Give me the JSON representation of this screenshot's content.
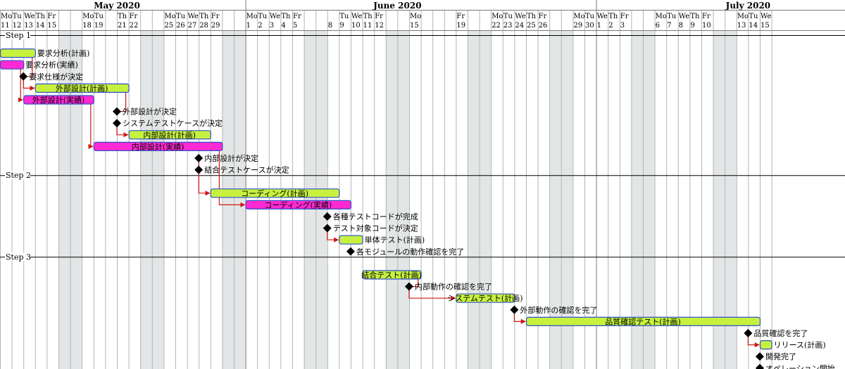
{
  "months": [
    {
      "label": "May 2020",
      "center_day": 10
    },
    {
      "label": "June 2020",
      "center_day": 34
    },
    {
      "label": "July 2020",
      "center_day": 64
    }
  ],
  "day_header": [
    {
      "wd": "Mo",
      "d": "11",
      "i": 0
    },
    {
      "wd": "Tu",
      "d": "12",
      "i": 1
    },
    {
      "wd": "We",
      "d": "13",
      "i": 2
    },
    {
      "wd": "Th",
      "d": "14",
      "i": 3
    },
    {
      "wd": "Fr",
      "d": "15",
      "i": 4
    },
    {
      "wd": "Mo",
      "d": "18",
      "i": 7
    },
    {
      "wd": "Tu",
      "d": "19",
      "i": 8
    },
    {
      "wd": "Th",
      "d": "21",
      "i": 10
    },
    {
      "wd": "Fr",
      "d": "22",
      "i": 11
    },
    {
      "wd": "Mo",
      "d": "25",
      "i": 14
    },
    {
      "wd": "Tu",
      "d": "26",
      "i": 15
    },
    {
      "wd": "We",
      "d": "27",
      "i": 16
    },
    {
      "wd": "Th",
      "d": "28",
      "i": 17
    },
    {
      "wd": "Fr",
      "d": "29",
      "i": 18
    },
    {
      "wd": "Mo",
      "d": "1",
      "i": 21
    },
    {
      "wd": "Tu",
      "d": "2",
      "i": 22
    },
    {
      "wd": "We",
      "d": "3",
      "i": 23
    },
    {
      "wd": "Th",
      "d": "4",
      "i": 24
    },
    {
      "wd": "Fr",
      "d": "5",
      "i": 25
    },
    {
      "wd": "",
      "d": "8",
      "i": 28
    },
    {
      "wd": "Tu",
      "d": "9",
      "i": 29
    },
    {
      "wd": "We",
      "d": "10",
      "i": 30
    },
    {
      "wd": "Th",
      "d": "11",
      "i": 31
    },
    {
      "wd": "Fr",
      "d": "12",
      "i": 32
    },
    {
      "wd": "Mo",
      "d": "15",
      "i": 35
    },
    {
      "wd": "Fr",
      "d": "19",
      "i": 39
    },
    {
      "wd": "Mo",
      "d": "22",
      "i": 42
    },
    {
      "wd": "Tu",
      "d": "23",
      "i": 43
    },
    {
      "wd": "We",
      "d": "24",
      "i": 44
    },
    {
      "wd": "Th",
      "d": "25",
      "i": 45
    },
    {
      "wd": "Fr",
      "d": "26",
      "i": 46
    },
    {
      "wd": "Mo",
      "d": "29",
      "i": 49
    },
    {
      "wd": "Tu",
      "d": "30",
      "i": 50
    },
    {
      "wd": "We",
      "d": "1",
      "i": 51
    },
    {
      "wd": "Th",
      "d": "2",
      "i": 52
    },
    {
      "wd": "Fr",
      "d": "3",
      "i": 53
    },
    {
      "wd": "Mo",
      "d": "6",
      "i": 56
    },
    {
      "wd": "Tu",
      "d": "7",
      "i": 57
    },
    {
      "wd": "We",
      "d": "8",
      "i": 58
    },
    {
      "wd": "Th",
      "d": "9",
      "i": 59
    },
    {
      "wd": "Fr",
      "d": "10",
      "i": 60
    },
    {
      "wd": "Mo",
      "d": "13",
      "i": 63
    },
    {
      "wd": "Tu",
      "d": "14",
      "i": 64
    },
    {
      "wd": "We",
      "d": "15",
      "i": 65
    }
  ],
  "steps": [
    {
      "label": "Step 1",
      "row": 0
    },
    {
      "label": "Step 2",
      "row": 12
    },
    {
      "label": "Step 3",
      "row": 19
    }
  ],
  "tasks": [
    {
      "id": "t1",
      "label": "要求分析(計画)",
      "type": "bar",
      "kind": "plan",
      "start": 0,
      "end": 3,
      "row": 1
    },
    {
      "id": "t2",
      "label": "要求分析(実績)",
      "type": "bar",
      "kind": "actual",
      "start": 0,
      "end": 2,
      "row": 2
    },
    {
      "id": "m1",
      "label": "要求仕様が決定",
      "type": "milestone",
      "at": 2,
      "row": 3
    },
    {
      "id": "t3",
      "label": "外部設計(計画)",
      "type": "bar",
      "kind": "plan",
      "start": 3,
      "end": 11,
      "row": 4
    },
    {
      "id": "t4",
      "label": "外部設計(実績)",
      "type": "bar",
      "kind": "actual",
      "start": 2,
      "end": 8,
      "row": 5
    },
    {
      "id": "m2",
      "label": "外部設計が決定",
      "type": "milestone",
      "at": 10,
      "row": 6
    },
    {
      "id": "m3",
      "label": "システムテストケースが決定",
      "type": "milestone",
      "at": 10,
      "row": 7
    },
    {
      "id": "t5",
      "label": "内部設計(計画)",
      "type": "bar",
      "kind": "plan",
      "start": 11,
      "end": 18,
      "row": 8
    },
    {
      "id": "t6",
      "label": "内部設計(実績)",
      "type": "bar",
      "kind": "actual",
      "start": 8,
      "end": 19,
      "row": 9
    },
    {
      "id": "m4",
      "label": "内部設計が決定",
      "type": "milestone",
      "at": 17,
      "row": 10
    },
    {
      "id": "m5",
      "label": "結合テストケースが決定",
      "type": "milestone",
      "at": 17,
      "row": 11
    },
    {
      "id": "t7",
      "label": "コーディング(計画)",
      "type": "bar",
      "kind": "plan",
      "start": 18,
      "end": 29,
      "row": 13
    },
    {
      "id": "t8",
      "label": "コーディング(実績)",
      "type": "bar",
      "kind": "actual",
      "start": 21,
      "end": 30,
      "row": 14
    },
    {
      "id": "m6",
      "label": "各種テストコードが完成",
      "type": "milestone",
      "at": 28,
      "row": 15
    },
    {
      "id": "m7",
      "label": "テスト対象コードが決定",
      "type": "milestone",
      "at": 28,
      "row": 16
    },
    {
      "id": "t9",
      "label": "単体テスト(計画)",
      "type": "bar",
      "kind": "plan",
      "start": 29,
      "end": 31,
      "row": 17
    },
    {
      "id": "m8",
      "label": "各モジュールの動作確認を完了",
      "type": "milestone",
      "at": 30,
      "row": 18
    },
    {
      "id": "t10",
      "label": "結合テスト(計画)",
      "type": "bar",
      "kind": "plan",
      "start": 31,
      "end": 36,
      "row": 20
    },
    {
      "id": "m9",
      "label": "内部動作の確認を完了",
      "type": "milestone",
      "at": 35,
      "row": 21
    },
    {
      "id": "t11",
      "label": "システムテスト(計画)",
      "type": "bar",
      "kind": "plan",
      "start": 39,
      "end": 44,
      "row": 22
    },
    {
      "id": "m10",
      "label": "外部動作の確認を完了",
      "type": "milestone",
      "at": 44,
      "row": 23
    },
    {
      "id": "t12",
      "label": "品質確認テスト(計画)",
      "type": "bar",
      "kind": "plan",
      "start": 45,
      "end": 65,
      "row": 24
    },
    {
      "id": "m11",
      "label": "品質確認を完了",
      "type": "milestone",
      "at": 64,
      "row": 25
    },
    {
      "id": "t13",
      "label": "リリース(計画)",
      "type": "bar",
      "kind": "plan",
      "start": 65,
      "end": 66,
      "row": 26
    },
    {
      "id": "m12",
      "label": "開発完了",
      "type": "milestone",
      "at": 65,
      "row": 27
    },
    {
      "id": "m13",
      "label": "オペレーション開始",
      "type": "milestone",
      "at": 65,
      "row": 28
    }
  ],
  "links": [
    [
      "t1",
      "m1"
    ],
    [
      "t2",
      "t4"
    ],
    [
      "m1",
      "t3"
    ],
    [
      "t3",
      "m2"
    ],
    [
      "m3",
      "t5"
    ],
    [
      "t4",
      "t6"
    ],
    [
      "m4",
      "t7"
    ],
    [
      "t6",
      "t8"
    ],
    [
      "m7",
      "t9"
    ],
    [
      "t10",
      "m9"
    ],
    [
      "m9",
      "t11"
    ],
    [
      "m10",
      "t12"
    ],
    [
      "m11",
      "t13"
    ]
  ],
  "colors": {
    "plan_fill": "#c6f23f",
    "plan_stroke": "#3150c8",
    "actual_fill": "#ff2ad4",
    "actual_stroke": "#3150c8",
    "weekend_shade": "#e3e6e6",
    "arrow": "#d01818",
    "milestone": "#000000",
    "grid": "#9a9a9a"
  }
}
